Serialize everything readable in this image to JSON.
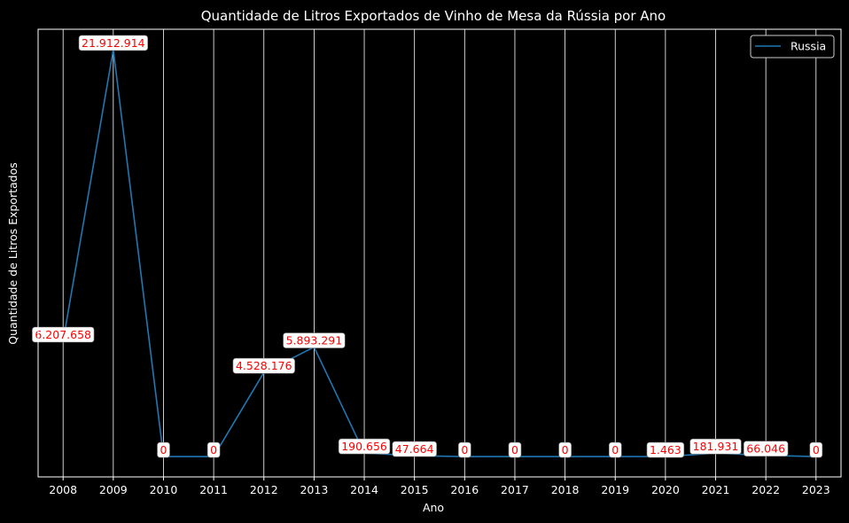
{
  "chart_data": {
    "type": "line",
    "title": "Quantidade de Litros Exportados de Vinho de Mesa da Rússia por Ano",
    "xlabel": "Ano",
    "ylabel": "Quantidade de Litros Exportados",
    "categories": [
      "2008",
      "2009",
      "2010",
      "2011",
      "2012",
      "2013",
      "2014",
      "2015",
      "2016",
      "2017",
      "2018",
      "2019",
      "2020",
      "2021",
      "2022",
      "2023"
    ],
    "series": [
      {
        "name": "Russia",
        "color": "#1f77b4",
        "values": [
          6207658,
          21912914,
          0,
          0,
          4528176,
          5893291,
          190656,
          47664,
          0,
          0,
          0,
          0,
          1463,
          181931,
          66046,
          0
        ],
        "labels": [
          "6.207.658",
          "21.912.914",
          "0",
          "0",
          "4.528.176",
          "5.893.291",
          "190.656",
          "47.664",
          "0",
          "0",
          "0",
          "0",
          "1.463",
          "181.931",
          "66.046",
          "0"
        ]
      }
    ],
    "ylim": [
      -1095646,
      23008560
    ],
    "y_ticks_visible": false,
    "grid": "vertical",
    "legend": "top-right",
    "background": "#000000",
    "label_color": "#ff0000"
  }
}
